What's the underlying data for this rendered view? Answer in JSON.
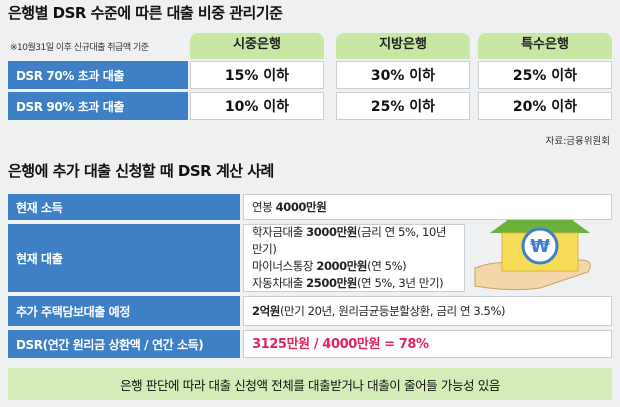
{
  "section1": {
    "title": "은행별 DSR 수준에 따른 대출 비중 관리기준",
    "note": "※10월31일 이후 신규대출 취급액 기준",
    "columns": [
      "시중은행",
      "지방은행",
      "특수은행"
    ],
    "rows": [
      {
        "label": "DSR 70% 초과 대출",
        "cells": [
          "15% 이하",
          "30% 이하",
          "25% 이하"
        ]
      },
      {
        "label": "DSR 90% 초과 대출",
        "cells": [
          "10% 이하",
          "25% 이하",
          "20% 이하"
        ]
      }
    ],
    "source": "자료:금융위원회"
  },
  "section2": {
    "title": "은행에 추가 대출 신청할 때 DSR 계산 사례",
    "rows": [
      {
        "label": "현재 소득",
        "lines": [
          [
            {
              "text": "연봉 "
            },
            {
              "text": "4000만원",
              "bold": true
            }
          ]
        ]
      },
      {
        "label": "현재 대출",
        "lines": [
          [
            {
              "text": "학자금대출 "
            },
            {
              "text": "3000만원",
              "bold": true
            },
            {
              "text": "(금리 연 5%, 10년 만기)"
            }
          ],
          [
            {
              "text": "마이너스통장 "
            },
            {
              "text": "2000만원",
              "bold": true
            },
            {
              "text": "(연 5%)"
            }
          ],
          [
            {
              "text": "자동차대출 "
            },
            {
              "text": "2500만원",
              "bold": true
            },
            {
              "text": "(연 5%, 3년 만기)"
            }
          ]
        ]
      },
      {
        "label": "추가 주택담보대출 예정",
        "lines": [
          [
            {
              "text": "2억원",
              "bold": true
            },
            {
              "text": "(만기 20년, 원리금균등분할상환, 금리 연 3.5%)"
            }
          ]
        ]
      },
      {
        "label": "DSR(연간 원리금 상환액 / 연간 소득)",
        "highlight": true,
        "lines": [
          [
            {
              "text": "3125만원 / 4000만원 = 78%",
              "bold": true
            }
          ]
        ]
      }
    ],
    "icon_symbol": "₩",
    "footer": "은행 판단에 따라 대출 신청액 전체를 대출받거나 대출이 줄어들 가능성 있음"
  }
}
